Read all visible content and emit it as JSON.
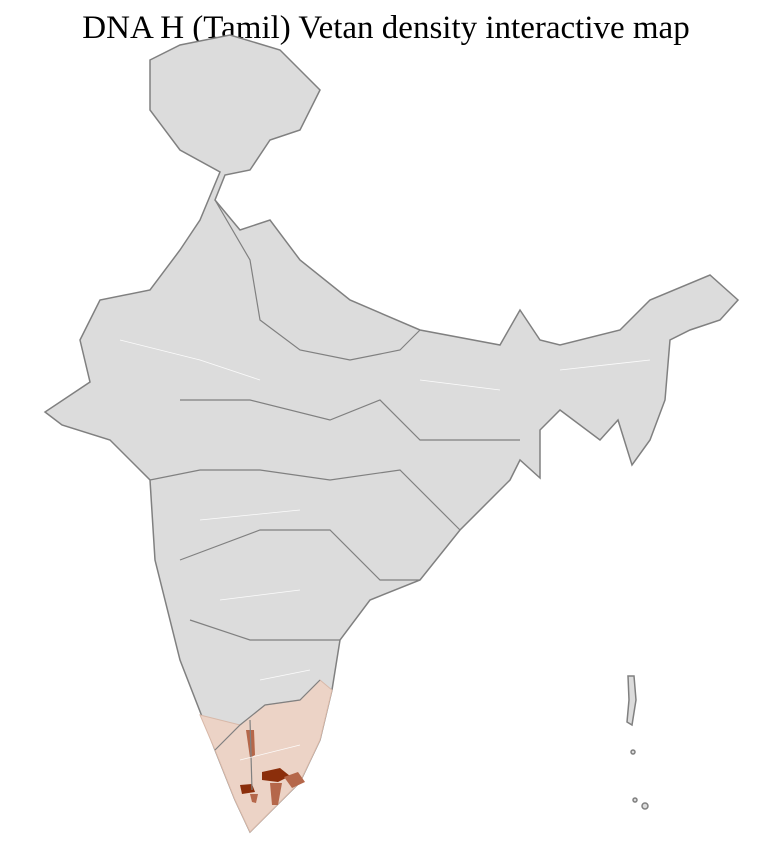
{
  "title": "DNA H (Tamil) Vetan density interactive map",
  "map": {
    "region": "India districts",
    "highlighted_region": "Tamil Nadu / Kerala (south)",
    "colors": {
      "base_fill": "#dcdcdc",
      "district_border": "#ffffff",
      "state_border": "#808080",
      "low_density": "#ecd3c6",
      "medium_density": "#b5674a",
      "high_density": "#8b2e0b"
    }
  }
}
